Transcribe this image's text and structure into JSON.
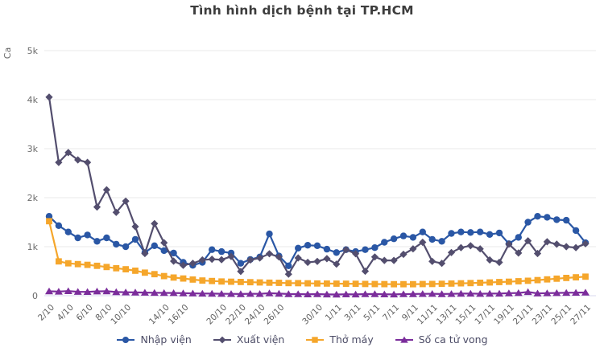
{
  "title": "Tình hình dịch bệnh tại TP.HCM",
  "chart_data": {
    "type": "line",
    "title": "Tình hình dịch bệnh tại TP.HCM",
    "ylabel": "Ca",
    "xlabel": "",
    "ylim": [
      0,
      5000
    ],
    "grid": "horizontal",
    "legend_position": "bottom",
    "y_ticks": [
      "0",
      "1k",
      "2k",
      "3k",
      "4k",
      "5k"
    ],
    "x": [
      "2/10",
      "3/10",
      "4/10",
      "5/10",
      "6/10",
      "7/10",
      "8/10",
      "9/10",
      "10/10",
      "11/10",
      "12/10",
      "13/10",
      "14/10",
      "15/10",
      "16/10",
      "17/10",
      "18/10",
      "19/10",
      "20/10",
      "21/10",
      "22/10",
      "23/10",
      "24/10",
      "25/10",
      "26/10",
      "27/10",
      "28/10",
      "29/10",
      "30/10",
      "31/10",
      "1/11",
      "2/11",
      "3/11",
      "4/11",
      "5/11",
      "6/11",
      "7/11",
      "8/11",
      "9/11",
      "10/11",
      "11/11",
      "12/11",
      "13/11",
      "14/11",
      "15/11",
      "16/11",
      "17/11",
      "18/11",
      "19/11",
      "20/11",
      "21/11",
      "22/11",
      "23/11",
      "24/11",
      "25/11",
      "26/11",
      "27/11"
    ],
    "x_ticks": [
      {
        "label": "2/10",
        "day": 0
      },
      {
        "label": "4/10",
        "day": 2
      },
      {
        "label": "6/10",
        "day": 4
      },
      {
        "label": "8/10",
        "day": 6
      },
      {
        "label": "10/10",
        "day": 8
      },
      {
        "label": "14/10",
        "day": 12
      },
      {
        "label": "16/10",
        "day": 14
      },
      {
        "label": "20/10",
        "day": 18
      },
      {
        "label": "22/10",
        "day": 20
      },
      {
        "label": "24/10",
        "day": 22
      },
      {
        "label": "26/10",
        "day": 24
      },
      {
        "label": "30/10",
        "day": 28
      },
      {
        "label": "1/11",
        "day": 30
      },
      {
        "label": "3/11",
        "day": 32
      },
      {
        "label": "5/11",
        "day": 34
      },
      {
        "label": "7/11",
        "day": 36
      },
      {
        "label": "9/11",
        "day": 38
      },
      {
        "label": "11/11",
        "day": 40
      },
      {
        "label": "13/11",
        "day": 42
      },
      {
        "label": "15/11",
        "day": 44
      },
      {
        "label": "17/11",
        "day": 46
      },
      {
        "label": "19/11",
        "day": 48
      },
      {
        "label": "21/11",
        "day": 50
      },
      {
        "label": "23/11",
        "day": 52
      },
      {
        "label": "25/11",
        "day": 54
      },
      {
        "label": "27/11",
        "day": 56
      }
    ],
    "series": [
      {
        "name": "Nhập viện",
        "color": "#2a57a5",
        "marker": "circle",
        "values": [
          1620,
          1430,
          1300,
          1180,
          1240,
          1110,
          1180,
          1050,
          1000,
          1150,
          880,
          1020,
          920,
          870,
          680,
          620,
          680,
          940,
          900,
          870,
          660,
          740,
          790,
          1260,
          810,
          610,
          970,
          1030,
          1020,
          950,
          880,
          940,
          900,
          940,
          980,
          1090,
          1160,
          1220,
          1190,
          1300,
          1150,
          1110,
          1270,
          1300,
          1290,
          1300,
          1250,
          1280,
          1060,
          1190,
          1500,
          1620,
          1600,
          1550,
          1540,
          1330,
          1080
        ]
      },
      {
        "name": "Xuất viện",
        "color": "#534e6e",
        "marker": "diamond",
        "values": [
          4050,
          2720,
          2920,
          2770,
          2720,
          1810,
          2160,
          1700,
          1930,
          1410,
          860,
          1470,
          1080,
          705,
          620,
          660,
          730,
          745,
          735,
          800,
          495,
          730,
          770,
          855,
          790,
          440,
          770,
          680,
          700,
          755,
          645,
          940,
          855,
          500,
          790,
          720,
          720,
          845,
          955,
          1090,
          700,
          660,
          880,
          980,
          1020,
          955,
          730,
          680,
          1050,
          870,
          1120,
          860,
          1100,
          1050,
          1000,
          980,
          1060
        ]
      },
      {
        "name": "Thở máy",
        "color": "#f5a62b",
        "marker": "square",
        "values": [
          1520,
          700,
          660,
          645,
          630,
          610,
          585,
          560,
          540,
          510,
          470,
          440,
          400,
          370,
          350,
          330,
          310,
          300,
          290,
          285,
          280,
          275,
          270,
          266,
          262,
          258,
          255,
          252,
          250,
          248,
          246,
          244,
          242,
          240,
          238,
          236,
          235,
          234,
          235,
          237,
          240,
          243,
          247,
          252,
          258,
          264,
          271,
          278,
          286,
          295,
          305,
          318,
          332,
          348,
          362,
          375,
          388
        ]
      },
      {
        "name": "Số ca tử vong",
        "color": "#7b2d9b",
        "marker": "triangle",
        "values": [
          90,
          85,
          95,
          80,
          78,
          88,
          92,
          75,
          70,
          68,
          64,
          60,
          58,
          55,
          50,
          48,
          45,
          42,
          40,
          38,
          35,
          40,
          38,
          50,
          42,
          35,
          32,
          30,
          32,
          28,
          25,
          30,
          28,
          32,
          35,
          30,
          28,
          32,
          35,
          38,
          40,
          35,
          38,
          42,
          45,
          40,
          42,
          45,
          50,
          55,
          77,
          48,
          52,
          55,
          60,
          62,
          65
        ]
      }
    ],
    "colors": {
      "gridline": "#e8e8e8",
      "zeroline": "#d9d9ef",
      "axis_text": "#666666",
      "title_text": "#3d3d3d",
      "legend_text": "#4c4c66"
    }
  }
}
